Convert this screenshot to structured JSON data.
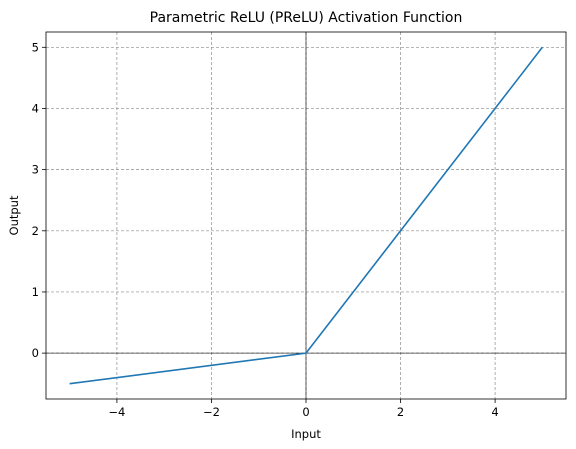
{
  "chart_data": {
    "type": "line",
    "title": "Parametric ReLU (PReLU) Activation Function",
    "xlabel": "Input",
    "ylabel": "Output",
    "xlim": [
      -5.5,
      5.5
    ],
    "ylim": [
      -0.75,
      5.25
    ],
    "xticks": [
      -4,
      -2,
      0,
      2,
      4
    ],
    "xtick_labels": [
      "−4",
      "−2",
      "0",
      "2",
      "4"
    ],
    "yticks": [
      0,
      1,
      2,
      3,
      4,
      5
    ],
    "ytick_labels": [
      "0",
      "1",
      "2",
      "3",
      "4",
      "5"
    ],
    "grid": true,
    "zero_lines": true,
    "series": [
      {
        "color": "#1f77b4",
        "x": [
          -5,
          0,
          5
        ],
        "y": [
          -0.5,
          0,
          5
        ]
      }
    ]
  }
}
